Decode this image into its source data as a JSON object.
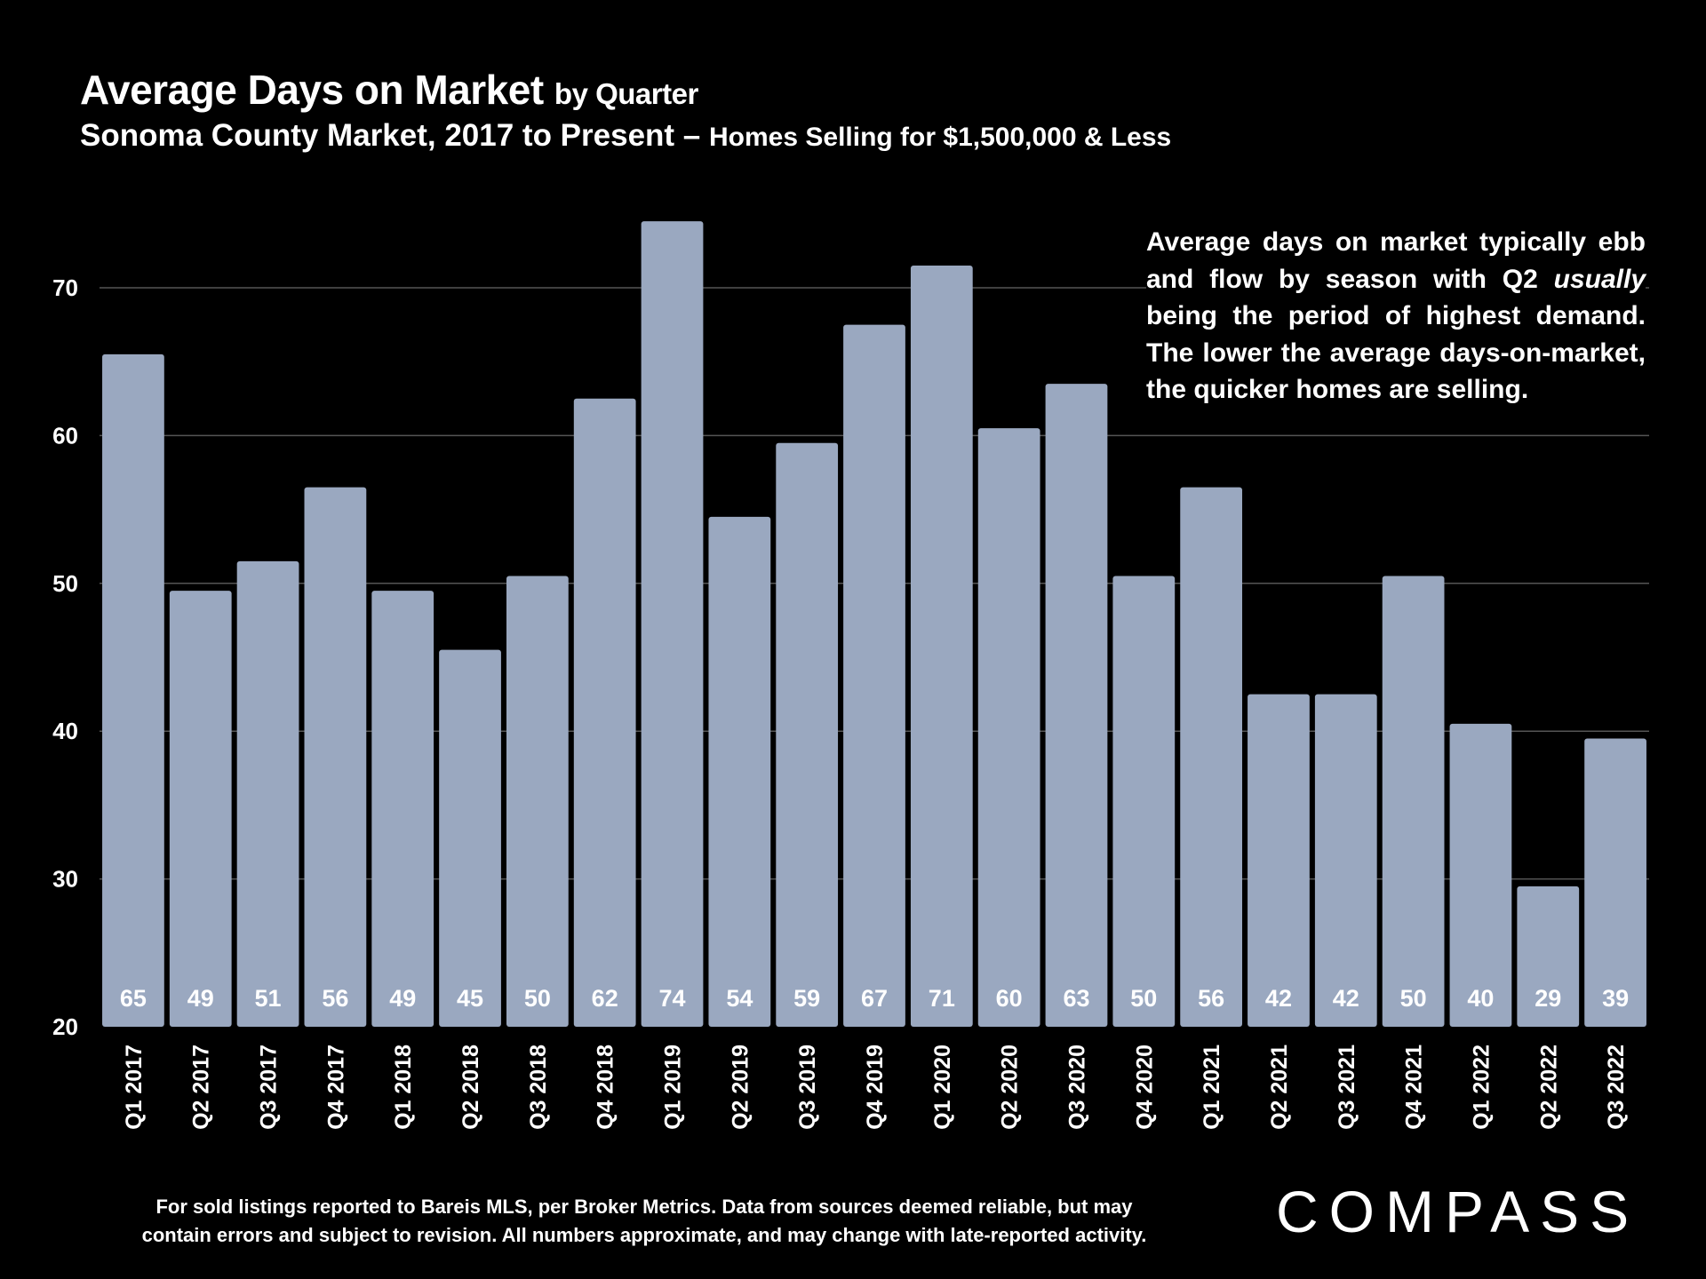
{
  "header": {
    "title_main": "Average Days on Market",
    "title_suffix": "by Quarter",
    "subtitle_main": "Sonoma County Market, 2017 to Present",
    "subtitle_dash": " – ",
    "subtitle_suffix": "Homes Selling for $1,500,000 & Less"
  },
  "annotation": {
    "text_before": "Average days on market typically ebb and flow by season with Q2 ",
    "text_italic": "usually",
    "text_after": " being the period of highest demand. The lower the average days-on-market, the quicker homes are selling."
  },
  "footnote": {
    "line1": "For sold listings reported to Bareis MLS, per Broker Metrics. Data from sources deemed reliable, but may",
    "line2": "contain errors and subject to revision. All numbers approximate, and may change with late-reported activity."
  },
  "logo": {
    "text": "COMPASS"
  },
  "colors": {
    "bar": "#9aa8c0",
    "background": "#000000",
    "text": "#ffffff",
    "grid": "#555555"
  },
  "chart_data": {
    "type": "bar",
    "title": "Average Days on Market by Quarter",
    "xlabel": "",
    "ylabel": "",
    "ylim": [
      20,
      75
    ],
    "yticks": [
      20,
      30,
      40,
      50,
      60,
      70
    ],
    "grid": true,
    "categories": [
      "Q1 2017",
      "Q2 2017",
      "Q3 2017",
      "Q4 2017",
      "Q1 2018",
      "Q2 2018",
      "Q3 2018",
      "Q4 2018",
      "Q1 2019",
      "Q2 2019",
      "Q3 2019",
      "Q4 2019",
      "Q1 2020",
      "Q2 2020",
      "Q3 2020",
      "Q4 2020",
      "Q1 2021",
      "Q2 2021",
      "Q3 2021",
      "Q4 2021",
      "Q1 2022",
      "Q2 2022",
      "Q3 2022"
    ],
    "values": [
      65,
      49,
      51,
      56,
      49,
      45,
      50,
      62,
      74,
      54,
      59,
      67,
      71,
      60,
      63,
      50,
      56,
      42,
      42,
      50,
      40,
      29,
      39
    ]
  }
}
